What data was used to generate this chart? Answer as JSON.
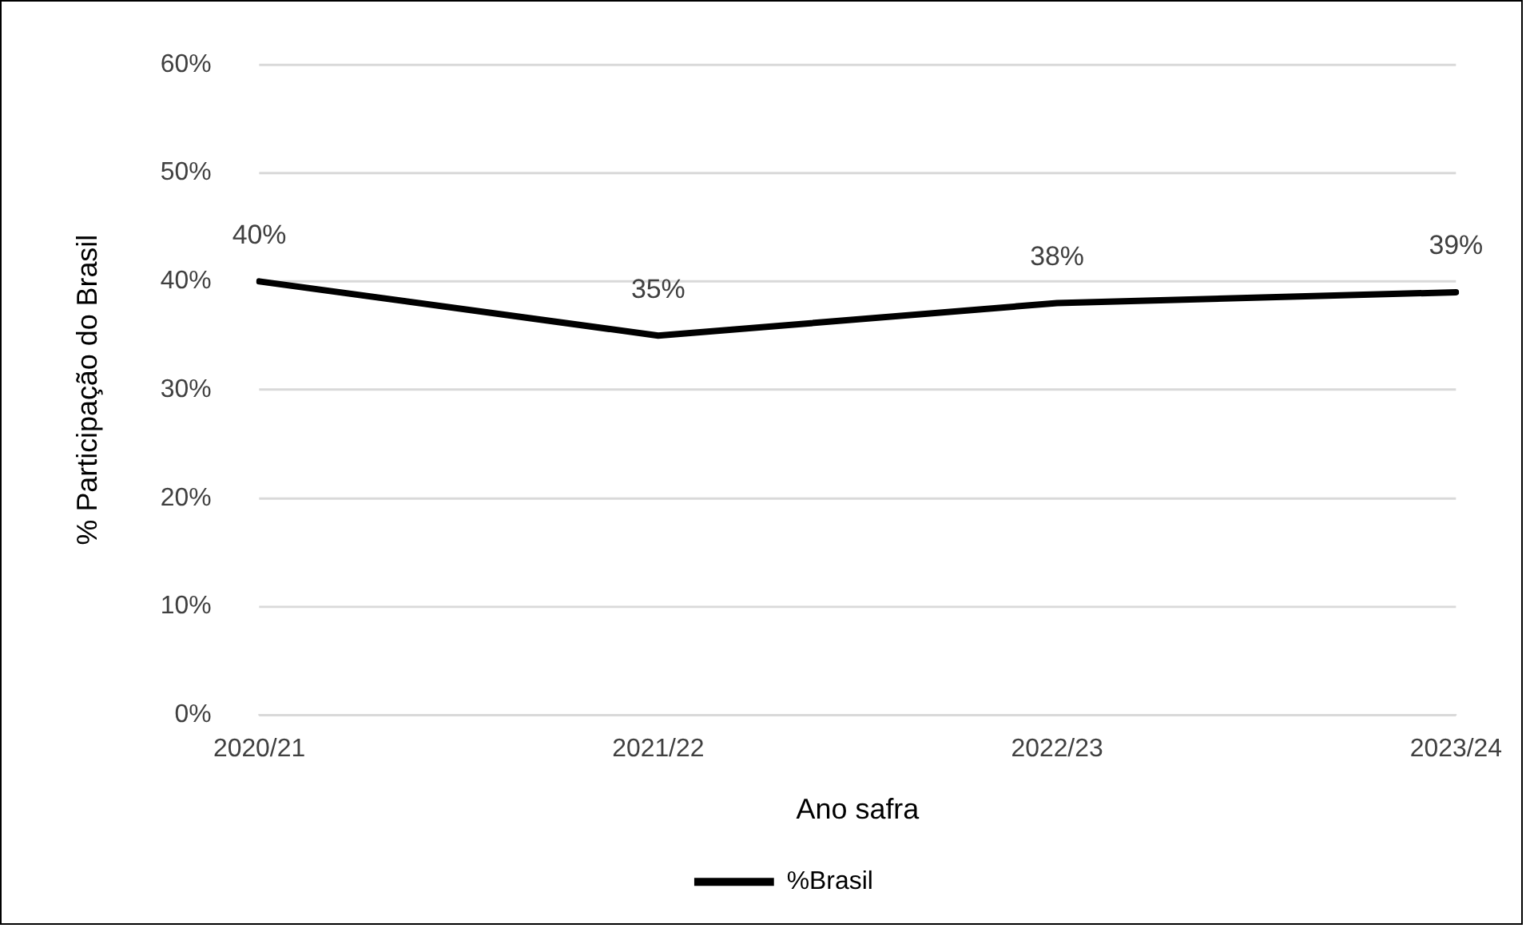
{
  "chart_data": {
    "type": "line",
    "xlabel": "Ano safra",
    "ylabel": "% Participação do Brasil",
    "categories": [
      "2020/21",
      "2021/22",
      "2022/23",
      "2023/24"
    ],
    "series": [
      {
        "name": "%Brasil",
        "color": "#000000",
        "values": [
          40,
          35,
          38,
          39
        ],
        "value_labels": [
          "40%",
          "35%",
          "38%",
          "39%"
        ]
      }
    ],
    "ylim": [
      0,
      60
    ],
    "yticks": [
      {
        "value": 0,
        "label": "0%"
      },
      {
        "value": 10,
        "label": "10%"
      },
      {
        "value": 20,
        "label": "20%"
      },
      {
        "value": 30,
        "label": "30%"
      },
      {
        "value": 40,
        "label": "40%"
      },
      {
        "value": 50,
        "label": "50%"
      },
      {
        "value": 60,
        "label": "60%"
      }
    ],
    "grid": "y",
    "legend": "bottom",
    "marker": "none",
    "line_style": "solid"
  }
}
